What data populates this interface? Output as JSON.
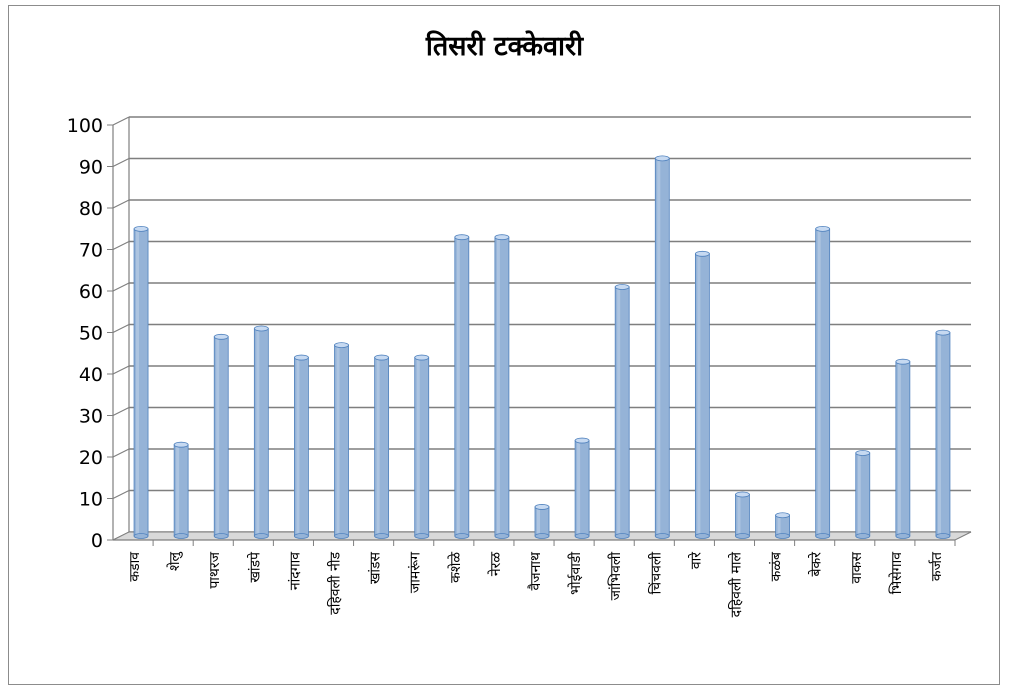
{
  "chart_data": {
    "type": "bar",
    "title": "तिसरी टक्केवारी",
    "xlabel": "",
    "ylabel": "",
    "ylim": [
      0,
      100
    ],
    "yticks": [
      0,
      10,
      20,
      30,
      40,
      50,
      60,
      70,
      80,
      90,
      100
    ],
    "grid": true,
    "legend": "none",
    "style": "3d-cylinder",
    "bar_color": "#95B3D7",
    "bar_edge_color": "#4F81BD",
    "categories": [
      "कडाव",
      "शेलु",
      "पाथरज",
      "खांडपे",
      "नांदगाव",
      "दहिवली नीड",
      "खांडस",
      "जामरूंग",
      "कशेळे",
      "नेरळ",
      "वैजनाथ",
      "भोईवाडी",
      "जांभिवली",
      "चिंचवली",
      "वारे",
      "दहिवली माले",
      "कळंब",
      "बेकरे",
      "वाकस",
      "भिसेगाव",
      "कर्जत"
    ],
    "values": [
      74,
      22,
      48,
      50,
      43,
      46,
      43,
      43,
      72,
      72,
      7,
      23,
      60,
      91,
      68,
      10,
      5,
      74,
      20,
      42,
      49
    ]
  }
}
